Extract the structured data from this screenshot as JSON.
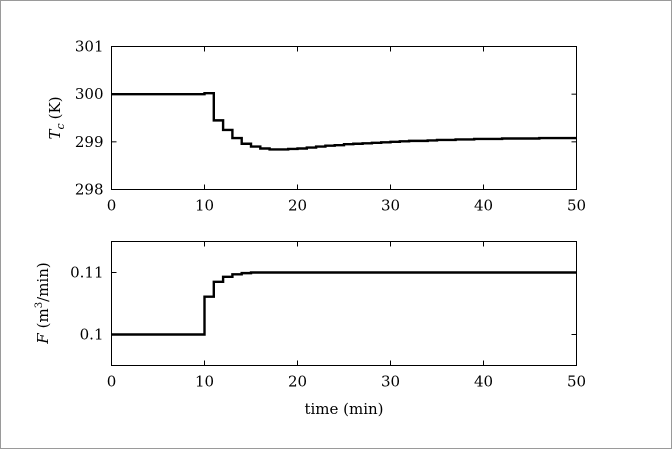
{
  "chart_data": [
    {
      "type": "line",
      "title": "",
      "xlabel": "",
      "ylabel_symbol": "T",
      "ylabel_subscript": "c",
      "ylabel_units": "(K)",
      "xlim": [
        0,
        50
      ],
      "ylim": [
        298,
        301
      ],
      "xticks": [
        0,
        10,
        20,
        30,
        40,
        50
      ],
      "yticks": [
        298,
        299,
        300,
        301
      ],
      "xtick_labels": [
        "0",
        "10",
        "20",
        "30",
        "40",
        "50"
      ],
      "ytick_labels": [
        "298",
        "299",
        "300",
        "301"
      ],
      "grid": false,
      "series": [
        {
          "step": true,
          "x": [
            0,
            10,
            11,
            12,
            13,
            14,
            15,
            16,
            17,
            18,
            19,
            20,
            21,
            22,
            23,
            24,
            25,
            26,
            27,
            28,
            29,
            30,
            31,
            32,
            33,
            34,
            35,
            36,
            37,
            38,
            39,
            40,
            41,
            42,
            43,
            44,
            45,
            46,
            47,
            48,
            49,
            50
          ],
          "y": [
            300.0,
            300.02,
            299.45,
            299.25,
            299.08,
            298.96,
            298.9,
            298.86,
            298.84,
            298.84,
            298.85,
            298.86,
            298.88,
            298.9,
            298.92,
            298.93,
            298.95,
            298.96,
            298.97,
            298.98,
            298.99,
            299.0,
            299.01,
            299.02,
            299.02,
            299.03,
            299.04,
            299.04,
            299.05,
            299.05,
            299.06,
            299.06,
            299.06,
            299.07,
            299.07,
            299.07,
            299.07,
            299.08,
            299.08,
            299.08,
            299.08,
            299.08
          ]
        }
      ]
    },
    {
      "type": "line",
      "title": "",
      "xlabel": "time (min)",
      "ylabel_symbol": "F",
      "ylabel_units_pre": "(m",
      "ylabel_units_sup": "3",
      "ylabel_units_post": "/min)",
      "xlim": [
        0,
        50
      ],
      "ylim": [
        0.095,
        0.115
      ],
      "xticks": [
        0,
        10,
        20,
        30,
        40,
        50
      ],
      "yticks": [
        0.1,
        0.11
      ],
      "xtick_labels": [
        "0",
        "10",
        "20",
        "30",
        "40",
        "50"
      ],
      "ytick_labels": [
        "0.1",
        "0.11"
      ],
      "grid": false,
      "series": [
        {
          "step": true,
          "x": [
            0,
            10,
            11,
            12,
            13,
            14,
            15,
            16,
            17,
            20,
            30,
            40,
            50
          ],
          "y": [
            0.1,
            0.1061,
            0.1085,
            0.1093,
            0.1097,
            0.1099,
            0.11,
            0.11,
            0.11,
            0.11,
            0.11,
            0.11,
            0.11
          ]
        }
      ]
    }
  ]
}
